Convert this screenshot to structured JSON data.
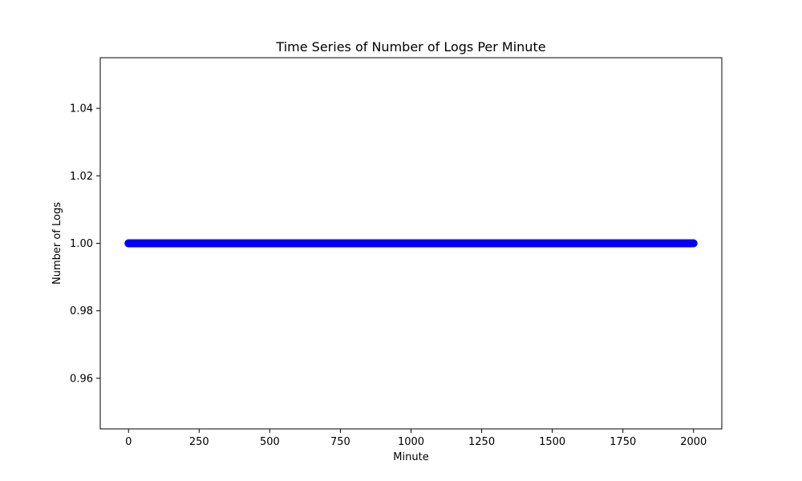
{
  "chart_data": {
    "type": "scatter",
    "title": "Time Series of Number of Logs Per Minute",
    "xlabel": "Minute",
    "ylabel": "Number of Logs",
    "xlim": [
      -100,
      2100
    ],
    "ylim": [
      0.945,
      1.055
    ],
    "x_ticks": [
      0,
      250,
      500,
      750,
      1000,
      1250,
      1500,
      1750,
      2000
    ],
    "x_tick_labels": [
      "0",
      "250",
      "500",
      "750",
      "1000",
      "1250",
      "1500",
      "1750",
      "2000"
    ],
    "y_ticks": [
      0.96,
      0.98,
      1.0,
      1.02,
      1.04
    ],
    "y_tick_labels": [
      "0.96",
      "0.98",
      "1.00",
      "1.02",
      "1.04"
    ],
    "grid": false,
    "legend": false,
    "series": [
      {
        "color": "#0000ff",
        "marker": "circle",
        "x_start": 0,
        "x_end": 2000,
        "x_step": 1,
        "y_constant": 1.0
      }
    ]
  }
}
